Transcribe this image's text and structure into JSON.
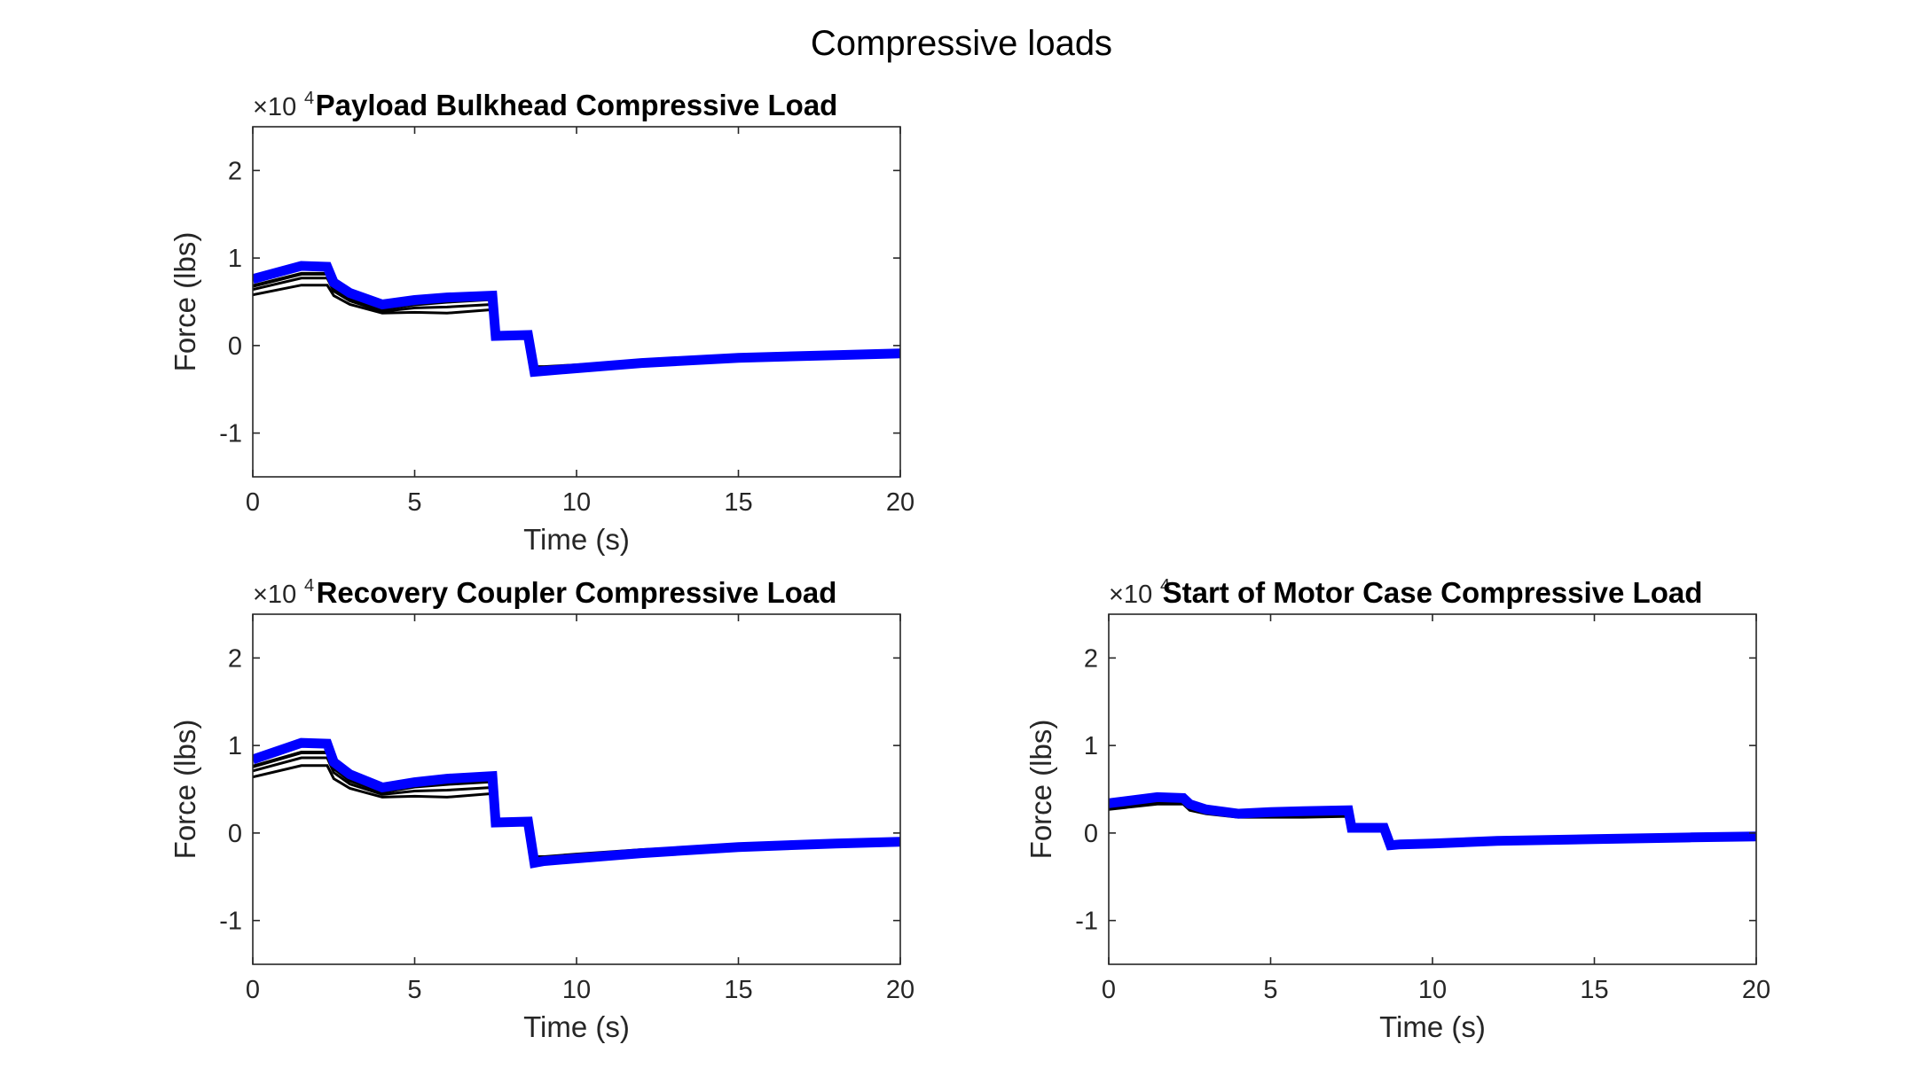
{
  "figure_title": "Compressive loads",
  "colors": {
    "black_series": "#000000",
    "blue_series": "#0000ff",
    "axes": "#262626"
  },
  "chart_data": [
    {
      "type": "line",
      "title": "Payload Bulkhead Compressive Load",
      "xlabel": "Time (s)",
      "ylabel": "Force (lbs)",
      "multiplier_label": "×10",
      "multiplier_exponent": "4",
      "xlim": [
        0,
        20
      ],
      "ylim": [
        -1.5,
        2.5
      ],
      "xticks": [
        0,
        5,
        10,
        15,
        20
      ],
      "yticks": [
        -1,
        0,
        1,
        2
      ],
      "series": [
        {
          "color": "black",
          "width": "thin",
          "x": [
            0,
            1.5,
            2.3,
            2.5,
            3,
            4,
            5,
            6,
            7.4,
            7.5,
            8.5,
            8.7,
            9,
            10,
            12,
            15,
            18,
            20
          ],
          "y": [
            0.58,
            0.69,
            0.69,
            0.57,
            0.47,
            0.37,
            0.38,
            0.37,
            0.41,
            0.09,
            0.1,
            -0.24,
            -0.24,
            -0.22,
            -0.18,
            -0.13,
            -0.1,
            -0.09
          ]
        },
        {
          "color": "black",
          "width": "thin",
          "x": [
            0,
            1.5,
            2.3,
            2.5,
            3,
            4,
            5,
            6,
            7.4,
            7.5,
            8.5,
            8.7,
            9,
            10,
            12,
            15,
            18,
            20
          ],
          "y": [
            0.64,
            0.77,
            0.77,
            0.62,
            0.51,
            0.39,
            0.43,
            0.44,
            0.47,
            0.1,
            0.11,
            -0.26,
            -0.25,
            -0.23,
            -0.18,
            -0.13,
            -0.1,
            -0.09
          ]
        },
        {
          "color": "black",
          "width": "medium",
          "x": [
            0,
            1.5,
            2.3,
            2.5,
            3,
            4,
            5,
            6,
            7.4,
            7.5,
            8.5,
            8.7,
            9,
            10,
            12,
            15,
            18,
            20
          ],
          "y": [
            0.68,
            0.82,
            0.82,
            0.66,
            0.54,
            0.42,
            0.47,
            0.5,
            0.53,
            0.1,
            0.12,
            -0.27,
            -0.26,
            -0.24,
            -0.19,
            -0.13,
            -0.1,
            -0.09
          ]
        },
        {
          "color": "blue",
          "width": "thick",
          "x": [
            0,
            1.5,
            2.3,
            2.5,
            3,
            4,
            5,
            6,
            7.4,
            7.5,
            8.5,
            8.7,
            9,
            10,
            12,
            15,
            18,
            20
          ],
          "y": [
            0.76,
            0.91,
            0.9,
            0.72,
            0.6,
            0.47,
            0.52,
            0.55,
            0.57,
            0.11,
            0.12,
            -0.3,
            -0.29,
            -0.26,
            -0.2,
            -0.14,
            -0.11,
            -0.09
          ]
        }
      ]
    },
    {
      "type": "line",
      "title": "Recovery Coupler Compressive Load",
      "xlabel": "Time (s)",
      "ylabel": "Force (lbs)",
      "multiplier_label": "×10",
      "multiplier_exponent": "4",
      "xlim": [
        0,
        20
      ],
      "ylim": [
        -1.5,
        2.5
      ],
      "xticks": [
        0,
        5,
        10,
        15,
        20
      ],
      "yticks": [
        -1,
        0,
        1,
        2
      ],
      "series": [
        {
          "color": "black",
          "width": "thin",
          "x": [
            0,
            1.5,
            2.3,
            2.5,
            3,
            4,
            5,
            6,
            7.4,
            7.5,
            8.5,
            8.7,
            9,
            10,
            12,
            15,
            18,
            20
          ],
          "y": [
            0.64,
            0.77,
            0.77,
            0.62,
            0.51,
            0.41,
            0.42,
            0.41,
            0.45,
            0.1,
            0.11,
            -0.27,
            -0.27,
            -0.24,
            -0.19,
            -0.14,
            -0.11,
            -0.1
          ]
        },
        {
          "color": "black",
          "width": "thin",
          "x": [
            0,
            1.5,
            2.3,
            2.5,
            3,
            4,
            5,
            6,
            7.4,
            7.5,
            8.5,
            8.7,
            9,
            10,
            12,
            15,
            18,
            20
          ],
          "y": [
            0.71,
            0.86,
            0.86,
            0.69,
            0.56,
            0.44,
            0.48,
            0.49,
            0.52,
            0.11,
            0.12,
            -0.29,
            -0.28,
            -0.25,
            -0.2,
            -0.14,
            -0.11,
            -0.1
          ]
        },
        {
          "color": "black",
          "width": "medium",
          "x": [
            0,
            1.5,
            2.3,
            2.5,
            3,
            4,
            5,
            6,
            7.4,
            7.5,
            8.5,
            8.7,
            9,
            10,
            12,
            15,
            18,
            20
          ],
          "y": [
            0.76,
            0.92,
            0.92,
            0.74,
            0.6,
            0.47,
            0.53,
            0.56,
            0.59,
            0.11,
            0.13,
            -0.31,
            -0.29,
            -0.26,
            -0.21,
            -0.15,
            -0.11,
            -0.1
          ]
        },
        {
          "color": "blue",
          "width": "thick",
          "x": [
            0,
            1.5,
            2.3,
            2.5,
            3,
            4,
            5,
            6,
            7.4,
            7.5,
            8.5,
            8.7,
            9,
            10,
            12,
            15,
            18,
            20
          ],
          "y": [
            0.84,
            1.03,
            1.02,
            0.81,
            0.67,
            0.52,
            0.58,
            0.62,
            0.65,
            0.12,
            0.13,
            -0.34,
            -0.32,
            -0.29,
            -0.23,
            -0.16,
            -0.12,
            -0.1
          ]
        }
      ]
    },
    {
      "type": "line",
      "title": "Start of Motor Case Compressive Load",
      "xlabel": "Time (s)",
      "ylabel": "Force (lbs)",
      "multiplier_label": "×10",
      "multiplier_exponent": "4",
      "xlim": [
        0,
        20
      ],
      "ylim": [
        -1.5,
        2.5
      ],
      "xticks": [
        0,
        5,
        10,
        15,
        20
      ],
      "yticks": [
        -1,
        0,
        1,
        2
      ],
      "series": [
        {
          "color": "black",
          "width": "thin",
          "x": [
            0,
            1.5,
            2.3,
            2.5,
            3,
            4,
            5,
            6,
            7.4,
            7.5,
            8.5,
            8.7,
            9,
            10,
            12,
            15,
            18,
            20
          ],
          "y": [
            0.27,
            0.33,
            0.33,
            0.26,
            0.22,
            0.18,
            0.18,
            0.18,
            0.19,
            0.04,
            0.05,
            -0.12,
            -0.12,
            -0.1,
            -0.08,
            -0.06,
            -0.05,
            -0.04
          ]
        },
        {
          "color": "black",
          "width": "thin",
          "x": [
            0,
            1.5,
            2.3,
            2.5,
            3,
            4,
            5,
            6,
            7.4,
            7.5,
            8.5,
            8.7,
            9,
            10,
            12,
            15,
            18,
            20
          ],
          "y": [
            0.29,
            0.35,
            0.35,
            0.28,
            0.23,
            0.19,
            0.2,
            0.2,
            0.21,
            0.05,
            0.05,
            -0.12,
            -0.12,
            -0.11,
            -0.08,
            -0.06,
            -0.05,
            -0.04
          ]
        },
        {
          "color": "black",
          "width": "medium",
          "x": [
            0,
            1.5,
            2.3,
            2.5,
            3,
            4,
            5,
            6,
            7.4,
            7.5,
            8.5,
            8.7,
            9,
            10,
            12,
            15,
            18,
            20
          ],
          "y": [
            0.31,
            0.37,
            0.37,
            0.3,
            0.24,
            0.2,
            0.21,
            0.22,
            0.23,
            0.05,
            0.06,
            -0.13,
            -0.12,
            -0.11,
            -0.08,
            -0.06,
            -0.05,
            -0.04
          ]
        },
        {
          "color": "blue",
          "width": "thick",
          "x": [
            0,
            1.5,
            2.3,
            2.5,
            3,
            4,
            5,
            6,
            7.4,
            7.5,
            8.5,
            8.7,
            9,
            10,
            12,
            15,
            18,
            20
          ],
          "y": [
            0.34,
            0.41,
            0.4,
            0.33,
            0.27,
            0.22,
            0.24,
            0.25,
            0.26,
            0.06,
            0.06,
            -0.14,
            -0.13,
            -0.12,
            -0.09,
            -0.07,
            -0.05,
            -0.04
          ]
        }
      ]
    }
  ]
}
